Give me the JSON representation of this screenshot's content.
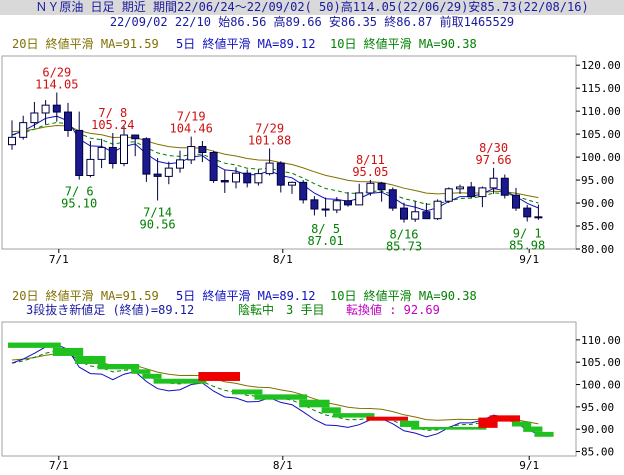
{
  "header": {
    "line1": "ＮＹ原油 日足 期近 期間22/06/24～22/09/02( 50)高114.05(22/06/29)安85.73(22/08/16)",
    "line2": "22/09/02 22/10 始86.56 高89.66 安86.35 終86.87 前取1465529"
  },
  "top_legend": {
    "ma20": "20日 終値平滑 MA=91.59",
    "ma5": "5日 終値平滑 MA=89.12",
    "ma10": "10日 終値平滑 MA=90.38"
  },
  "bottom_legend": {
    "ma20": "20日 終値平滑 MA=91.59",
    "ma5": "5日 終値平滑 MA=89.12",
    "ma10": "10日 終値平滑 MA=90.38",
    "kagi_title": "3段抜き新値足 (終値)=89.12",
    "kagi_state": "陰転中",
    "kagi_count": "3 手目",
    "kagi_reversal": "転換値 : 92.69"
  },
  "colors": {
    "ma20": "#807000",
    "ma5": "#1010c0",
    "ma10": "#008000",
    "up_candle": "#ffffff",
    "down_candle": "#1a1a8c",
    "candle_edge": "#000040",
    "high_label": "#d01010",
    "low_label": "#008000",
    "kagi_down": "#20c020",
    "kagi_up": "#ee0000",
    "frame": "#a0a0a0",
    "legend_text": "#1a1aa0"
  },
  "chart_data": [
    {
      "type": "candlestick",
      "title": "ＮＹ原油 日足 期近",
      "x_ticks": [
        "7/1",
        "8/1",
        "9/1"
      ],
      "y_ticks": [
        80.0,
        85.0,
        90.0,
        95.0,
        100.0,
        105.0,
        110.0,
        115.0,
        120.0
      ],
      "ylim": [
        80,
        122
      ],
      "candles": [
        {
          "o": 102.7,
          "h": 108.0,
          "l": 101.6,
          "c": 104.3
        },
        {
          "o": 104.3,
          "h": 109.0,
          "l": 103.8,
          "c": 107.5
        },
        {
          "o": 107.5,
          "h": 112.0,
          "l": 106.3,
          "c": 109.6
        },
        {
          "o": 109.6,
          "h": 112.4,
          "l": 107.1,
          "c": 111.3
        },
        {
          "o": 111.3,
          "h": 114.05,
          "l": 107.7,
          "c": 109.8
        },
        {
          "o": 109.8,
          "h": 111.8,
          "l": 104.4,
          "c": 105.8
        },
        {
          "o": 105.8,
          "h": 109.9,
          "l": 95.1,
          "c": 96.0
        },
        {
          "o": 96.0,
          "h": 103.5,
          "l": 95.6,
          "c": 99.5
        },
        {
          "o": 99.5,
          "h": 104.0,
          "l": 97.6,
          "c": 102.1
        },
        {
          "o": 102.1,
          "h": 105.24,
          "l": 97.5,
          "c": 98.6
        },
        {
          "o": 98.6,
          "h": 106.7,
          "l": 98.0,
          "c": 104.8
        },
        {
          "o": 104.8,
          "h": 104.9,
          "l": 100.2,
          "c": 104.0
        },
        {
          "o": 104.0,
          "h": 104.3,
          "l": 94.6,
          "c": 96.3
        },
        {
          "o": 96.3,
          "h": 99.8,
          "l": 90.56,
          "c": 95.8
        },
        {
          "o": 95.8,
          "h": 99.0,
          "l": 94.1,
          "c": 97.6
        },
        {
          "o": 97.6,
          "h": 101.4,
          "l": 96.6,
          "c": 99.4
        },
        {
          "o": 99.4,
          "h": 104.46,
          "l": 98.5,
          "c": 102.3
        },
        {
          "o": 102.3,
          "h": 103.5,
          "l": 98.9,
          "c": 101.0
        },
        {
          "o": 101.0,
          "h": 101.4,
          "l": 94.4,
          "c": 94.9
        },
        {
          "o": 94.9,
          "h": 97.2,
          "l": 92.2,
          "c": 94.6
        },
        {
          "o": 94.6,
          "h": 97.8,
          "l": 93.2,
          "c": 96.5
        },
        {
          "o": 96.5,
          "h": 97.3,
          "l": 93.4,
          "c": 94.4
        },
        {
          "o": 94.4,
          "h": 97.3,
          "l": 93.8,
          "c": 96.4
        },
        {
          "o": 96.4,
          "h": 101.88,
          "l": 96.0,
          "c": 98.7
        },
        {
          "o": 98.7,
          "h": 99.1,
          "l": 92.3,
          "c": 93.9
        },
        {
          "o": 93.9,
          "h": 94.7,
          "l": 92.0,
          "c": 94.5
        },
        {
          "o": 94.5,
          "h": 95.0,
          "l": 89.9,
          "c": 90.7
        },
        {
          "o": 90.7,
          "h": 91.5,
          "l": 87.3,
          "c": 88.7
        },
        {
          "o": 88.7,
          "h": 91.2,
          "l": 87.01,
          "c": 88.5
        },
        {
          "o": 88.5,
          "h": 91.3,
          "l": 87.8,
          "c": 90.5
        },
        {
          "o": 90.5,
          "h": 92.4,
          "l": 89.2,
          "c": 89.6
        },
        {
          "o": 89.6,
          "h": 94.2,
          "l": 89.6,
          "c": 92.2
        },
        {
          "o": 92.2,
          "h": 95.05,
          "l": 91.6,
          "c": 94.3
        },
        {
          "o": 94.3,
          "h": 94.6,
          "l": 90.3,
          "c": 92.9
        },
        {
          "o": 92.9,
          "h": 93.4,
          "l": 88.3,
          "c": 88.9
        },
        {
          "o": 88.9,
          "h": 90.1,
          "l": 85.73,
          "c": 86.5
        },
        {
          "o": 86.5,
          "h": 90.4,
          "l": 85.9,
          "c": 88.1
        },
        {
          "o": 88.1,
          "h": 90.0,
          "l": 86.5,
          "c": 86.6
        },
        {
          "o": 86.6,
          "h": 90.8,
          "l": 86.3,
          "c": 90.4
        },
        {
          "o": 90.4,
          "h": 93.4,
          "l": 90.0,
          "c": 93.1
        },
        {
          "o": 93.1,
          "h": 94.0,
          "l": 92.0,
          "c": 93.5
        },
        {
          "o": 93.5,
          "h": 94.6,
          "l": 91.0,
          "c": 91.4
        },
        {
          "o": 91.4,
          "h": 93.6,
          "l": 89.1,
          "c": 93.3
        },
        {
          "o": 93.3,
          "h": 97.66,
          "l": 92.0,
          "c": 95.4
        },
        {
          "o": 95.4,
          "h": 96.2,
          "l": 91.0,
          "c": 91.7
        },
        {
          "o": 91.7,
          "h": 93.3,
          "l": 88.3,
          "c": 88.9
        },
        {
          "o": 88.9,
          "h": 89.6,
          "l": 85.98,
          "c": 87.0
        },
        {
          "o": 87.0,
          "h": 89.66,
          "l": 86.35,
          "c": 86.87
        }
      ],
      "annotations": [
        {
          "date": "6/29",
          "value": "114.05",
          "kind": "high",
          "i": 4
        },
        {
          "date": "7/ 8",
          "value": "105.24",
          "kind": "high",
          "i": 9
        },
        {
          "date": "7/19",
          "value": "104.46",
          "kind": "high",
          "i": 16
        },
        {
          "date": "7/29",
          "value": "101.88",
          "kind": "high",
          "i": 23
        },
        {
          "date": "8/11",
          "value": "95.05",
          "kind": "high",
          "i": 32
        },
        {
          "date": "8/30",
          "value": "97.66",
          "kind": "high",
          "i": 43
        },
        {
          "date": "7/ 6",
          "value": "95.10",
          "kind": "low",
          "i": 6
        },
        {
          "date": "7/14",
          "value": "90.56",
          "kind": "low",
          "i": 13
        },
        {
          "date": "8/ 5",
          "value": "87.01",
          "kind": "low",
          "i": 28
        },
        {
          "date": "8/16",
          "value": "85.73",
          "kind": "low",
          "i": 35
        },
        {
          "date": "9/ 1",
          "value": "85.98",
          "kind": "low",
          "i": 46
        }
      ]
    },
    {
      "type": "line+kagi",
      "title": "3段抜き新値足 (終値)",
      "x_ticks": [
        "7/1",
        "8/1",
        "9/1"
      ],
      "y_ticks": [
        85.0,
        90.0,
        95.0,
        100.0,
        105.0,
        110.0
      ],
      "ylim": [
        84,
        114
      ],
      "kagi_blocks": [
        {
          "from": 0,
          "to": 4,
          "top": 109.4,
          "bot": 108.2,
          "dir": "down"
        },
        {
          "from": 4,
          "to": 6,
          "top": 108.2,
          "bot": 106.4,
          "dir": "down"
        },
        {
          "from": 6,
          "to": 8,
          "top": 106.4,
          "bot": 104.6,
          "dir": "down"
        },
        {
          "from": 8,
          "to": 11,
          "top": 104.6,
          "bot": 103.4,
          "dir": "down"
        },
        {
          "from": 11,
          "to": 12,
          "top": 103.4,
          "bot": 102.4,
          "dir": "down"
        },
        {
          "from": 12,
          "to": 13,
          "top": 102.4,
          "bot": 101.3,
          "dir": "down"
        },
        {
          "from": 13,
          "to": 17,
          "top": 101.3,
          "bot": 100.2,
          "dir": "down"
        },
        {
          "from": 17,
          "to": 20,
          "top": 102.8,
          "bot": 100.8,
          "dir": "up"
        },
        {
          "from": 20,
          "to": 22,
          "top": 98.9,
          "bot": 97.8,
          "dir": "down"
        },
        {
          "from": 22,
          "to": 26,
          "top": 97.8,
          "bot": 96.6,
          "dir": "down"
        },
        {
          "from": 26,
          "to": 28,
          "top": 96.6,
          "bot": 94.9,
          "dir": "down"
        },
        {
          "from": 28,
          "to": 29,
          "top": 94.9,
          "bot": 93.6,
          "dir": "down"
        },
        {
          "from": 29,
          "to": 32,
          "top": 93.6,
          "bot": 92.6,
          "dir": "down"
        },
        {
          "from": 32,
          "to": 35,
          "top": 92.8,
          "bot": 91.9,
          "dir": "up"
        },
        {
          "from": 35,
          "to": 36,
          "top": 91.9,
          "bot": 90.5,
          "dir": "down"
        },
        {
          "from": 36,
          "to": 42,
          "top": 90.5,
          "bot": 89.9,
          "dir": "down"
        },
        {
          "from": 42,
          "to": 43,
          "top": 92.6,
          "bot": 90.3,
          "dir": "up"
        },
        {
          "from": 43,
          "to": 45,
          "top": 93.1,
          "bot": 91.7,
          "dir": "up"
        },
        {
          "from": 45,
          "to": 46,
          "top": 91.7,
          "bot": 90.6,
          "dir": "down"
        },
        {
          "from": 46,
          "to": 47,
          "top": 90.6,
          "bot": 89.4,
          "dir": "down"
        },
        {
          "from": 47,
          "to": 48,
          "top": 89.4,
          "bot": 88.3,
          "dir": "down"
        }
      ]
    }
  ]
}
